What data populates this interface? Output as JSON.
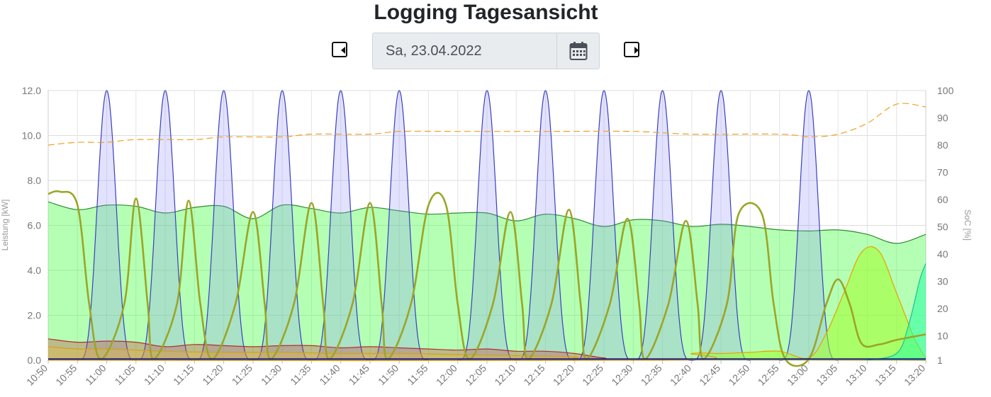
{
  "page": {
    "title": "Logging Tagesansicht"
  },
  "date_picker": {
    "value": "Sa, 23.04.2022",
    "prev_icon": "triangle-left-icon",
    "next_icon": "triangle-right-icon",
    "calendar_icon": "calendar-icon"
  },
  "chart_data": {
    "type": "area",
    "xlabel": "",
    "y_left_label": "Leistung [kW]",
    "y_right_label": "SoC [%]",
    "y_left_range": [
      0,
      12
    ],
    "y_left_ticks": [
      "0.0",
      "2.0",
      "4.0",
      "6.0",
      "8.0",
      "10.0",
      "12.0"
    ],
    "y_right_range": [
      1,
      100
    ],
    "y_right_ticks": [
      "1",
      "10",
      "20",
      "30",
      "40",
      "50",
      "60",
      "70",
      "80",
      "90",
      "100"
    ],
    "x_range_min": [
      650,
      800
    ],
    "x_ticks": [
      "10:50",
      "10:55",
      "11:00",
      "11:05",
      "11:10",
      "11:15",
      "11:20",
      "11:25",
      "11:30",
      "11:35",
      "11:40",
      "11:45",
      "11:50",
      "11:55",
      "12:00",
      "12:05",
      "12:10",
      "12:15",
      "12:20",
      "12:25",
      "12:30",
      "12:35",
      "12:40",
      "12:45",
      "12:50",
      "12:55",
      "13:00",
      "13:05",
      "13:10",
      "13:15",
      "13:20"
    ],
    "grid": true,
    "series": [
      {
        "key": "blue_peaks",
        "color": "#3b3fbf",
        "fill": "rgba(140,140,255,0.25)",
        "pulse_centers": [
          "11:00",
          "11:10",
          "11:20",
          "11:30",
          "11:40",
          "11:50",
          "12:05",
          "12:15",
          "12:25",
          "12:35",
          "12:45",
          "13:00"
        ],
        "pulse_peak": 12.0
      },
      {
        "key": "green_area",
        "color": "#2e8b2e",
        "fill": "rgba(60,255,60,0.38)",
        "points": [
          [
            "10:50",
            7.05
          ],
          [
            "10:55",
            6.7
          ],
          [
            "11:00",
            6.9
          ],
          [
            "11:05",
            6.85
          ],
          [
            "11:10",
            6.55
          ],
          [
            "11:15",
            6.8
          ],
          [
            "11:20",
            6.85
          ],
          [
            "11:25",
            6.3
          ],
          [
            "11:30",
            6.9
          ],
          [
            "11:35",
            6.75
          ],
          [
            "11:40",
            6.55
          ],
          [
            "11:45",
            6.8
          ],
          [
            "11:50",
            6.65
          ],
          [
            "11:55",
            6.5
          ],
          [
            "12:00",
            6.55
          ],
          [
            "12:05",
            6.55
          ],
          [
            "12:10",
            6.2
          ],
          [
            "12:15",
            6.5
          ],
          [
            "12:20",
            6.3
          ],
          [
            "12:25",
            5.95
          ],
          [
            "12:30",
            6.25
          ],
          [
            "12:35",
            6.2
          ],
          [
            "12:40",
            5.95
          ],
          [
            "12:45",
            6.05
          ],
          [
            "12:50",
            5.95
          ],
          [
            "12:55",
            5.8
          ],
          [
            "13:00",
            5.75
          ],
          [
            "13:05",
            5.8
          ],
          [
            "13:10",
            5.6
          ],
          [
            "13:15",
            5.2
          ],
          [
            "13:20",
            5.6
          ]
        ]
      },
      {
        "key": "olive_osc",
        "color": "#9aa626",
        "points": [
          [
            "10:50",
            7.4
          ],
          [
            "10:52",
            7.5
          ],
          [
            "10:55",
            6.9
          ],
          [
            "10:57",
            2.5
          ],
          [
            "10:59",
            0.05
          ],
          [
            "11:03",
            2.5
          ],
          [
            "11:05",
            7.2
          ],
          [
            "11:07",
            2.5
          ],
          [
            "11:08",
            0.05
          ],
          [
            "11:12",
            2.5
          ],
          [
            "11:14",
            7.1
          ],
          [
            "11:16",
            2.5
          ],
          [
            "11:18",
            0.05
          ],
          [
            "11:22",
            2.5
          ],
          [
            "11:25",
            6.6
          ],
          [
            "11:27",
            2.5
          ],
          [
            "11:28",
            0.05
          ],
          [
            "11:32",
            2.5
          ],
          [
            "11:35",
            7.0
          ],
          [
            "11:37",
            2.5
          ],
          [
            "11:38",
            0.05
          ],
          [
            "11:42",
            2.5
          ],
          [
            "11:45",
            7.0
          ],
          [
            "11:47",
            2.5
          ],
          [
            "11:48",
            0.05
          ],
          [
            "11:52",
            2.5
          ],
          [
            "11:55",
            6.9
          ],
          [
            "11:58",
            6.9
          ],
          [
            "12:00",
            2.5
          ],
          [
            "12:02",
            0.05
          ],
          [
            "12:06",
            2.5
          ],
          [
            "12:09",
            6.6
          ],
          [
            "12:11",
            2.5
          ],
          [
            "12:12",
            0.05
          ],
          [
            "12:16",
            2.5
          ],
          [
            "12:19",
            6.7
          ],
          [
            "12:21",
            2.5
          ],
          [
            "12:22",
            0.05
          ],
          [
            "12:26",
            2.5
          ],
          [
            "12:29",
            6.3
          ],
          [
            "12:31",
            2.5
          ],
          [
            "12:32",
            0.05
          ],
          [
            "12:36",
            2.5
          ],
          [
            "12:39",
            6.2
          ],
          [
            "12:41",
            2.5
          ],
          [
            "12:42",
            0.05
          ],
          [
            "12:46",
            2.5
          ],
          [
            "12:48",
            6.5
          ],
          [
            "12:52",
            6.5
          ],
          [
            "12:54",
            2.5
          ],
          [
            "12:56",
            0.05
          ],
          [
            "13:00",
            0.05
          ],
          [
            "13:03",
            2.5
          ],
          [
            "13:05",
            3.6
          ],
          [
            "13:07",
            2.5
          ],
          [
            "13:09",
            0.75
          ],
          [
            "13:12",
            0.7
          ],
          [
            "13:15",
            0.9
          ],
          [
            "13:20",
            1.15
          ]
        ]
      },
      {
        "key": "orange_soc",
        "color": "#f0a020",
        "dashed": true,
        "axis": "right",
        "points": [
          [
            "10:50",
            80
          ],
          [
            "10:55",
            81
          ],
          [
            "11:00",
            81
          ],
          [
            "11:05",
            82
          ],
          [
            "11:15",
            82
          ],
          [
            "11:20",
            83
          ],
          [
            "11:30",
            83
          ],
          [
            "11:35",
            84
          ],
          [
            "11:45",
            84
          ],
          [
            "11:50",
            85
          ],
          [
            "12:00",
            85
          ],
          [
            "12:15",
            85
          ],
          [
            "12:30",
            85
          ],
          [
            "12:40",
            84
          ],
          [
            "12:55",
            84
          ],
          [
            "13:00",
            83
          ],
          [
            "13:05",
            84
          ],
          [
            "13:10",
            88
          ],
          [
            "13:15",
            95
          ],
          [
            "13:20",
            94
          ]
        ]
      },
      {
        "key": "yellow_area",
        "color": "#e8a000",
        "fill": "rgba(160,255,40,0.55)",
        "points": [
          [
            "10:50",
            0
          ],
          [
            "12:35",
            0
          ],
          [
            "12:40",
            0.3
          ],
          [
            "12:45",
            0.3
          ],
          [
            "12:50",
            0.35
          ],
          [
            "12:55",
            0.4
          ],
          [
            "13:00",
            0.1
          ],
          [
            "13:03",
            1.2
          ],
          [
            "13:06",
            3.0
          ],
          [
            "13:09",
            4.8
          ],
          [
            "13:12",
            4.85
          ],
          [
            "13:15",
            3.0
          ],
          [
            "13:18",
            1.0
          ],
          [
            "13:20",
            0.1
          ]
        ]
      },
      {
        "key": "teal_area",
        "color": "#20c090",
        "fill": "rgba(40,255,160,0.55)",
        "points": [
          [
            "13:10",
            0
          ],
          [
            "13:15",
            0.3
          ],
          [
            "13:17",
            1.5
          ],
          [
            "13:19",
            3.6
          ],
          [
            "13:20",
            4.3
          ]
        ]
      },
      {
        "key": "red_area",
        "color": "#b03030",
        "fill": "rgba(200,60,60,0.35)",
        "points": [
          [
            "10:50",
            0.95
          ],
          [
            "10:55",
            0.8
          ],
          [
            "11:00",
            0.85
          ],
          [
            "11:05",
            0.8
          ],
          [
            "11:10",
            0.6
          ],
          [
            "11:15",
            0.7
          ],
          [
            "11:20",
            0.65
          ],
          [
            "11:25",
            0.6
          ],
          [
            "11:30",
            0.65
          ],
          [
            "11:35",
            0.65
          ],
          [
            "11:40",
            0.55
          ],
          [
            "11:45",
            0.6
          ],
          [
            "11:50",
            0.55
          ],
          [
            "11:55",
            0.5
          ],
          [
            "12:00",
            0.45
          ],
          [
            "12:05",
            0.5
          ],
          [
            "12:10",
            0.4
          ],
          [
            "12:15",
            0.4
          ],
          [
            "12:20",
            0.3
          ],
          [
            "12:25",
            0.1
          ],
          [
            "12:30",
            0.05
          ],
          [
            "13:20",
            0
          ]
        ]
      },
      {
        "key": "tan_area",
        "color": "#d4a020",
        "fill": "rgba(230,190,60,0.35)",
        "points": [
          [
            "10:50",
            0.6
          ],
          [
            "10:55",
            0.5
          ],
          [
            "11:00",
            0.5
          ],
          [
            "11:10",
            0.4
          ],
          [
            "11:20",
            0.35
          ],
          [
            "11:30",
            0.35
          ],
          [
            "11:40",
            0.3
          ],
          [
            "11:50",
            0.3
          ],
          [
            "12:00",
            0.25
          ],
          [
            "12:10",
            0.2
          ],
          [
            "12:20",
            0.15
          ],
          [
            "12:25",
            0.05
          ],
          [
            "13:20",
            0
          ]
        ]
      },
      {
        "key": "navy_base",
        "color": "#1a1a80",
        "points": [
          [
            "10:50",
            0.05
          ],
          [
            "13:20",
            0.05
          ]
        ]
      }
    ]
  }
}
